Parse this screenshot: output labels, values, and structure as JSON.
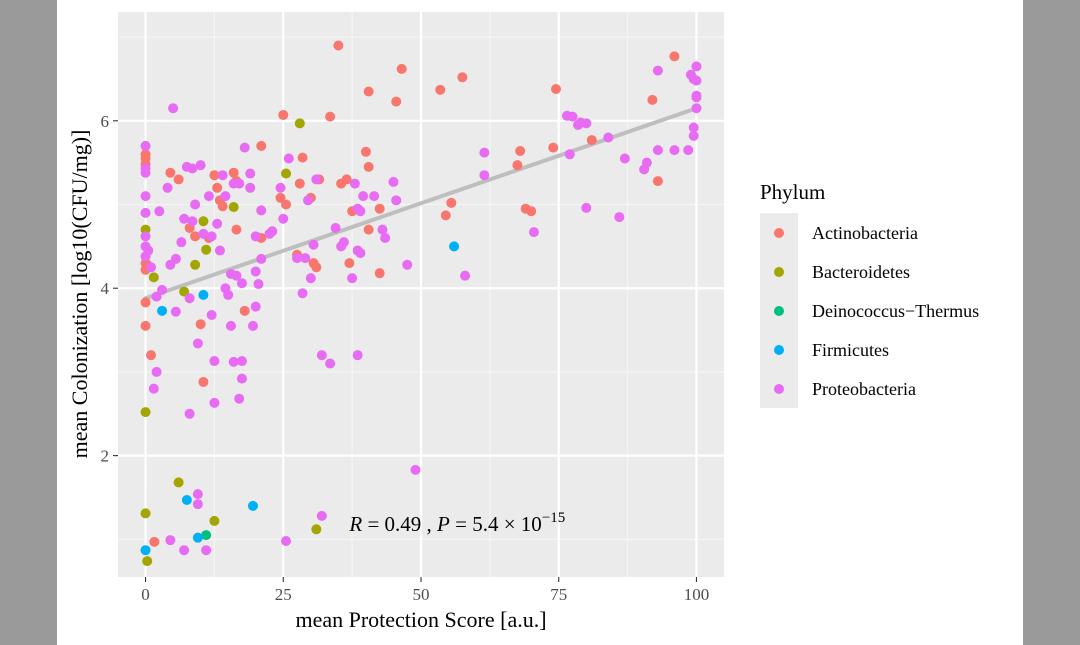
{
  "chart_data": {
    "type": "scatter",
    "xlabel": "mean Protection Score [a.u.]",
    "ylabel": "mean Colonization [log10(CFU/mg)]",
    "xlim": [
      -5,
      105
    ],
    "ylim": [
      0.55,
      7.3
    ],
    "xticks": [
      0,
      25,
      50,
      75,
      100
    ],
    "yticks": [
      2,
      4,
      6
    ],
    "grid": true,
    "legend": {
      "title": "Phylum",
      "placement": "right",
      "entries": [
        {
          "name": "Actinobacteria",
          "color": "#F8766D"
        },
        {
          "name": "Bacteroidetes",
          "color": "#A3A500"
        },
        {
          "name": "Deinococcus−Thermus",
          "color": "#00BF7D"
        },
        {
          "name": "Firmicutes",
          "color": "#00B0F6"
        },
        {
          "name": "Proteobacteria",
          "color": "#E76BF3"
        }
      ]
    },
    "annotation": {
      "r_label": "R",
      "r_text": " = 0.49 , ",
      "p_label": "P",
      "p_text": " = 5.4 × 10",
      "p_exp": "−15",
      "x": 37,
      "y": 1.1
    },
    "trendline": {
      "x": [
        0,
        100
      ],
      "y": [
        3.88,
        6.15
      ],
      "color": "#BEBEBE"
    },
    "series": [
      {
        "name": "Actinobacteria",
        "color": "#F8766D",
        "points": [
          [
            0,
            5.6
          ],
          [
            0,
            5.55
          ],
          [
            0,
            5.48
          ],
          [
            0,
            4.3
          ],
          [
            0,
            4.22
          ],
          [
            0,
            3.83
          ],
          [
            0,
            3.55
          ],
          [
            0.3,
            4.28
          ],
          [
            1,
            3.2
          ],
          [
            1.6,
            0.97
          ],
          [
            4.5,
            5.38
          ],
          [
            6,
            5.3
          ],
          [
            8,
            4.72
          ],
          [
            9,
            4.62
          ],
          [
            10,
            3.57
          ],
          [
            10.5,
            2.88
          ],
          [
            11.5,
            4.6
          ],
          [
            12.5,
            5.35
          ],
          [
            13,
            5.2
          ],
          [
            13.5,
            5.05
          ],
          [
            14,
            4.98
          ],
          [
            16,
            5.38
          ],
          [
            16.5,
            5.28
          ],
          [
            16.5,
            4.7
          ],
          [
            18,
            3.73
          ],
          [
            21,
            5.7
          ],
          [
            21,
            4.6
          ],
          [
            24.5,
            5.08
          ],
          [
            25,
            6.07
          ],
          [
            25.5,
            5.0
          ],
          [
            27.5,
            4.4
          ],
          [
            28,
            5.25
          ],
          [
            28.5,
            5.56
          ],
          [
            30,
            5.08
          ],
          [
            30.5,
            4.3
          ],
          [
            31,
            4.25
          ],
          [
            31.5,
            5.3
          ],
          [
            33.5,
            6.05
          ],
          [
            35,
            6.9
          ],
          [
            35.5,
            5.25
          ],
          [
            36.5,
            5.3
          ],
          [
            37,
            4.3
          ],
          [
            37.5,
            4.92
          ],
          [
            40,
            5.63
          ],
          [
            40.5,
            4.7
          ],
          [
            40.5,
            6.35
          ],
          [
            40.5,
            5.45
          ],
          [
            42.5,
            4.18
          ],
          [
            42.5,
            4.95
          ],
          [
            45.5,
            6.23
          ],
          [
            46.5,
            6.62
          ],
          [
            53.5,
            6.37
          ],
          [
            54.5,
            4.87
          ],
          [
            55.5,
            5.02
          ],
          [
            57.5,
            6.52
          ],
          [
            67.5,
            5.47
          ],
          [
            68,
            5.64
          ],
          [
            69,
            4.95
          ],
          [
            70,
            4.92
          ],
          [
            74,
            5.68
          ],
          [
            74.5,
            6.38
          ],
          [
            81,
            5.77
          ],
          [
            92,
            6.25
          ],
          [
            93,
            5.28
          ],
          [
            96,
            6.77
          ]
        ]
      },
      {
        "name": "Bacteroidetes",
        "color": "#A3A500",
        "points": [
          [
            0,
            4.7
          ],
          [
            0,
            2.52
          ],
          [
            0,
            1.31
          ],
          [
            0.3,
            0.74
          ],
          [
            1.5,
            4.13
          ],
          [
            6,
            1.68
          ],
          [
            7,
            3.96
          ],
          [
            9,
            4.28
          ],
          [
            10.5,
            4.8
          ],
          [
            11,
            4.46
          ],
          [
            12.5,
            1.22
          ],
          [
            16,
            4.97
          ],
          [
            25.5,
            5.37
          ],
          [
            28,
            5.97
          ],
          [
            31,
            1.12
          ]
        ]
      },
      {
        "name": "Deinococcus−Thermus",
        "color": "#00BF7D",
        "points": [
          [
            11,
            1.05
          ]
        ]
      },
      {
        "name": "Firmicutes",
        "color": "#00B0F6",
        "points": [
          [
            0,
            0.87
          ],
          [
            3,
            3.73
          ],
          [
            7.5,
            1.47
          ],
          [
            9.5,
            1.02
          ],
          [
            10.5,
            3.92
          ],
          [
            19.5,
            1.4
          ],
          [
            56,
            4.5
          ]
        ]
      },
      {
        "name": "Proteobacteria",
        "color": "#E76BF3",
        "points": [
          [
            0,
            5.7
          ],
          [
            0,
            5.43
          ],
          [
            0,
            5.38
          ],
          [
            0,
            5.1
          ],
          [
            0,
            4.9
          ],
          [
            0,
            4.62
          ],
          [
            0,
            4.5
          ],
          [
            0,
            4.38
          ],
          [
            0.5,
            4.45
          ],
          [
            1,
            4.25
          ],
          [
            1.5,
            2.8
          ],
          [
            2,
            3.9
          ],
          [
            2,
            3.0
          ],
          [
            2.5,
            4.92
          ],
          [
            3,
            3.98
          ],
          [
            4,
            5.2
          ],
          [
            4.5,
            4.28
          ],
          [
            4.5,
            0.99
          ],
          [
            5,
            6.15
          ],
          [
            5.5,
            4.35
          ],
          [
            5.5,
            3.72
          ],
          [
            6.5,
            4.55
          ],
          [
            7,
            4.83
          ],
          [
            7,
            0.87
          ],
          [
            7.5,
            5.45
          ],
          [
            8,
            3.88
          ],
          [
            8,
            2.5
          ],
          [
            8.5,
            5.43
          ],
          [
            8.5,
            4.8
          ],
          [
            9,
            5.0
          ],
          [
            9.5,
            3.34
          ],
          [
            9.5,
            1.54
          ],
          [
            9.5,
            1.42
          ],
          [
            10,
            5.47
          ],
          [
            10.5,
            4.65
          ],
          [
            11,
            0.87
          ],
          [
            11.5,
            5.1
          ],
          [
            12,
            4.62
          ],
          [
            12,
            3.68
          ],
          [
            12.5,
            3.13
          ],
          [
            12.5,
            2.63
          ],
          [
            13,
            4.77
          ],
          [
            13.5,
            4.45
          ],
          [
            14,
            5.35
          ],
          [
            14.5,
            4.0
          ],
          [
            14.5,
            5.1
          ],
          [
            15,
            3.92
          ],
          [
            15.5,
            4.17
          ],
          [
            15.5,
            3.55
          ],
          [
            16,
            5.25
          ],
          [
            16,
            3.12
          ],
          [
            16.5,
            4.15
          ],
          [
            17,
            5.25
          ],
          [
            17,
            2.68
          ],
          [
            17.5,
            4.06
          ],
          [
            17.5,
            3.13
          ],
          [
            17.5,
            2.92
          ],
          [
            18,
            5.68
          ],
          [
            19,
            5.37
          ],
          [
            19,
            5.2
          ],
          [
            19.5,
            3.55
          ],
          [
            20,
            4.62
          ],
          [
            20,
            4.2
          ],
          [
            20,
            3.78
          ],
          [
            20.5,
            4.05
          ],
          [
            21,
            4.93
          ],
          [
            21,
            4.35
          ],
          [
            22.5,
            4.65
          ],
          [
            23,
            4.68
          ],
          [
            24.5,
            5.2
          ],
          [
            25,
            4.83
          ],
          [
            25.5,
            0.98
          ],
          [
            26,
            5.55
          ],
          [
            27.5,
            4.36
          ],
          [
            28.5,
            3.94
          ],
          [
            29,
            4.36
          ],
          [
            29.5,
            5.05
          ],
          [
            30,
            4.12
          ],
          [
            30.5,
            4.52
          ],
          [
            31,
            5.3
          ],
          [
            32,
            3.2
          ],
          [
            32,
            1.28
          ],
          [
            33.5,
            3.1
          ],
          [
            34.5,
            4.72
          ],
          [
            35.5,
            4.5
          ],
          [
            36,
            4.55
          ],
          [
            37.5,
            4.12
          ],
          [
            38,
            5.25
          ],
          [
            38.5,
            4.95
          ],
          [
            38.5,
            4.45
          ],
          [
            38.5,
            3.2
          ],
          [
            39,
            4.92
          ],
          [
            39,
            4.42
          ],
          [
            39.5,
            5.1
          ],
          [
            41.5,
            5.1
          ],
          [
            43,
            4.7
          ],
          [
            43.5,
            4.6
          ],
          [
            45,
            5.27
          ],
          [
            45.5,
            5.05
          ],
          [
            47.5,
            4.28
          ],
          [
            49,
            1.83
          ],
          [
            58,
            4.15
          ],
          [
            61.5,
            5.62
          ],
          [
            61.5,
            5.35
          ],
          [
            70.5,
            4.67
          ],
          [
            76.5,
            6.06
          ],
          [
            77,
            5.6
          ],
          [
            77.5,
            6.05
          ],
          [
            78.5,
            5.95
          ],
          [
            79,
            5.98
          ],
          [
            80,
            5.97
          ],
          [
            80,
            4.96
          ],
          [
            84,
            5.8
          ],
          [
            86,
            4.85
          ],
          [
            87,
            5.55
          ],
          [
            90.5,
            5.42
          ],
          [
            91,
            5.5
          ],
          [
            93,
            6.6
          ],
          [
            93,
            5.65
          ],
          [
            96,
            5.65
          ],
          [
            98.5,
            5.65
          ],
          [
            99,
            6.55
          ],
          [
            99.5,
            6.5
          ],
          [
            99.5,
            5.92
          ],
          [
            99.5,
            5.82
          ],
          [
            100,
            6.65
          ],
          [
            100,
            6.48
          ],
          [
            100,
            6.3
          ],
          [
            100,
            6.28
          ],
          [
            100,
            6.15
          ]
        ]
      }
    ]
  }
}
